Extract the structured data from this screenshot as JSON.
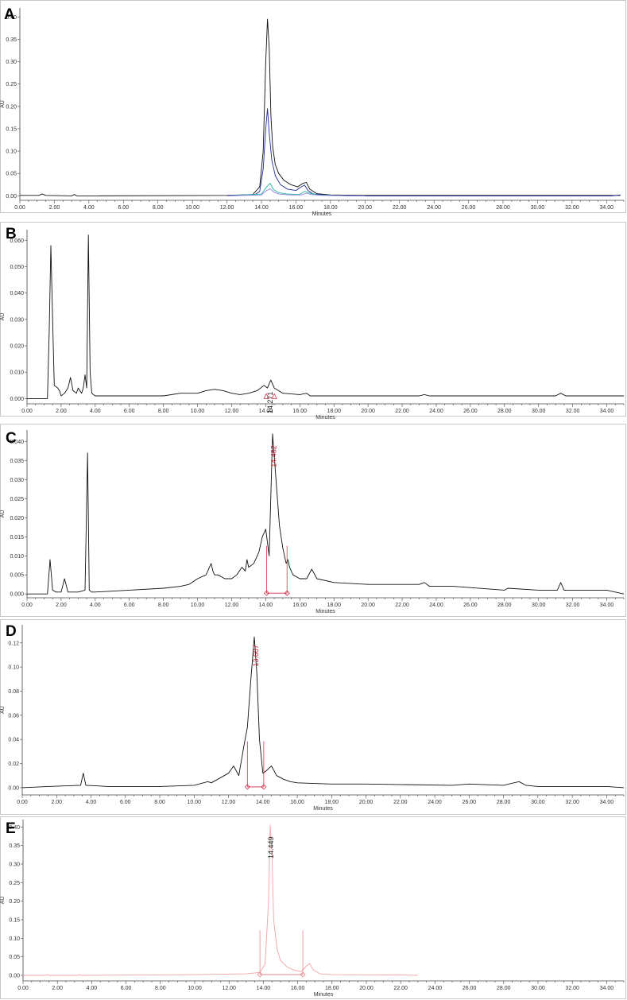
{
  "chart_data": [
    {
      "type": "line",
      "panel_label": "A",
      "xlabel": "Minutes",
      "ylabel": "AU",
      "xlim": [
        0,
        35
      ],
      "ylim": [
        -0.01,
        0.42
      ],
      "xticks": [
        0,
        2,
        4,
        6,
        8,
        10,
        12,
        14,
        16,
        18,
        20,
        22,
        24,
        26,
        28,
        30,
        32,
        34
      ],
      "xtick_labels": [
        "0.00",
        "2.00",
        "4.00",
        "6.00",
        "8.00",
        "10.00",
        "12.00",
        "14.00",
        "16.00",
        "18.00",
        "20.00",
        "22.00",
        "24.00",
        "26.00",
        "28.00",
        "30.00",
        "32.00",
        "34.00"
      ],
      "yticks": [
        0,
        0.05,
        0.1,
        0.15,
        0.2,
        0.25,
        0.3,
        0.35,
        0.4
      ],
      "ytick_labels": [
        "0.00",
        "0.05",
        "0.10",
        "0.15",
        "0.20",
        "0.25",
        "0.30",
        "0.35",
        "0.40"
      ],
      "series": [
        {
          "color": "#111111",
          "x": [
            0,
            1.1,
            1.3,
            1.5,
            3.0,
            3.15,
            3.3,
            4.5,
            12,
            13.5,
            13.9,
            14.1,
            14.25,
            14.35,
            14.45,
            14.55,
            14.65,
            14.8,
            15.0,
            15.3,
            15.7,
            16.1,
            16.4,
            16.6,
            16.8,
            17.2,
            18,
            20,
            34.8
          ],
          "y": [
            0.001,
            0.001,
            0.004,
            0.001,
            0.0,
            0.003,
            0.0,
            0.0,
            0.001,
            0.003,
            0.02,
            0.1,
            0.3,
            0.395,
            0.33,
            0.18,
            0.11,
            0.07,
            0.05,
            0.035,
            0.025,
            0.02,
            0.028,
            0.03,
            0.015,
            0.005,
            0.002,
            0.001,
            0.001
          ]
        },
        {
          "color": "#1d2a9c",
          "x": [
            12,
            13.6,
            13.9,
            14.1,
            14.25,
            14.35,
            14.45,
            14.6,
            14.8,
            15.1,
            15.5,
            16.0,
            16.3,
            16.5,
            16.7,
            17.0,
            18,
            20,
            34.3,
            34.8
          ],
          "y": [
            0.001,
            0.002,
            0.01,
            0.06,
            0.15,
            0.195,
            0.14,
            0.08,
            0.045,
            0.025,
            0.015,
            0.012,
            0.02,
            0.024,
            0.012,
            0.004,
            0.001,
            0.0,
            0.0,
            0.002
          ]
        },
        {
          "color": "#25b39a",
          "x": [
            12,
            14.0,
            14.3,
            14.5,
            14.7,
            15.0,
            15.5,
            16.2,
            16.5,
            16.8,
            17.3,
            19,
            20
          ],
          "y": [
            0.0,
            0.004,
            0.02,
            0.028,
            0.014,
            0.007,
            0.004,
            0.003,
            0.01,
            0.006,
            0.002,
            0.0,
            0.0
          ]
        },
        {
          "color": "#8f7fe6",
          "x": [
            12,
            14.0,
            14.3,
            14.5,
            14.7,
            15.0,
            15.6,
            16.3,
            16.6,
            16.9,
            17.5,
            20
          ],
          "y": [
            0.0,
            0.002,
            0.012,
            0.016,
            0.009,
            0.004,
            0.002,
            0.002,
            0.006,
            0.003,
            0.001,
            0.0
          ]
        }
      ],
      "peak_annotations": []
    },
    {
      "type": "line",
      "panel_label": "B",
      "xlabel": "Minutes",
      "ylabel": "AU",
      "xlim": [
        0,
        35
      ],
      "ylim": [
        -0.002,
        0.064
      ],
      "xticks": [
        0,
        2,
        4,
        6,
        8,
        10,
        12,
        14,
        16,
        18,
        20,
        22,
        24,
        26,
        28,
        30,
        32,
        34
      ],
      "xtick_labels": [
        "0.00",
        "2.00",
        "4.00",
        "6.00",
        "8.00",
        "10.00",
        "12.00",
        "14.00",
        "16.00",
        "18.00",
        "20.00",
        "22.00",
        "24.00",
        "26.00",
        "28.00",
        "30.00",
        "32.00",
        "34.00"
      ],
      "yticks": [
        0,
        0.01,
        0.02,
        0.03,
        0.04,
        0.05,
        0.06
      ],
      "ytick_labels": [
        "0.000",
        "0.010",
        "0.020",
        "0.030",
        "0.040",
        "0.050",
        "0.060"
      ],
      "series": [
        {
          "color": "#111111",
          "x": [
            0,
            1.2,
            1.3,
            1.4,
            1.5,
            1.6,
            1.8,
            1.9,
            2.0,
            2.2,
            2.4,
            2.55,
            2.7,
            2.9,
            3.0,
            3.1,
            3.2,
            3.3,
            3.4,
            3.5,
            3.6,
            3.7,
            3.8,
            4.0,
            5,
            6,
            7,
            8,
            9,
            10,
            10.5,
            11,
            11.5,
            12,
            12.5,
            13,
            13.5,
            13.9,
            14.1,
            14.3,
            14.5,
            15,
            16,
            16.4,
            16.6,
            17,
            20,
            23,
            23.3,
            23.6,
            25,
            28,
            31,
            31.3,
            31.6,
            32,
            34,
            35
          ],
          "y": [
            0.0,
            0.0,
            0.025,
            0.058,
            0.03,
            0.005,
            0.004,
            0.003,
            0.001,
            0.002,
            0.004,
            0.008,
            0.003,
            0.002,
            0.004,
            0.003,
            0.002,
            0.004,
            0.009,
            0.004,
            0.062,
            0.01,
            0.002,
            0.001,
            0.001,
            0.001,
            0.001,
            0.001,
            0.002,
            0.002,
            0.003,
            0.0035,
            0.003,
            0.002,
            0.0015,
            0.002,
            0.003,
            0.005,
            0.004,
            0.007,
            0.004,
            0.002,
            0.0015,
            0.002,
            0.001,
            0.001,
            0.001,
            0.001,
            0.0015,
            0.001,
            0.001,
            0.001,
            0.001,
            0.002,
            0.001,
            0.001,
            0.001,
            0.001
          ]
        }
      ],
      "peak_annotations": [
        {
          "label": "14.271",
          "x": 14.27,
          "y": 0.007,
          "color": "#222222",
          "mark_color": "#d0324a"
        }
      ]
    },
    {
      "type": "line",
      "panel_label": "C",
      "xlabel": "Minutes",
      "ylabel": "AU",
      "xlim": [
        0,
        35
      ],
      "ylim": [
        -0.001,
        0.043
      ],
      "xticks": [
        0,
        2,
        4,
        6,
        8,
        10,
        12,
        14,
        16,
        18,
        20,
        22,
        24,
        26,
        28,
        30,
        32,
        34
      ],
      "xtick_labels": [
        "0.00",
        "2.00",
        "4.00",
        "6.00",
        "8.00",
        "10.00",
        "12.00",
        "14.00",
        "16.00",
        "18.00",
        "20.00",
        "22.00",
        "24.00",
        "26.00",
        "28.00",
        "30.00",
        "32.00",
        "34.00"
      ],
      "yticks": [
        0,
        0.005,
        0.01,
        0.015,
        0.02,
        0.025,
        0.03,
        0.035,
        0.04
      ],
      "ytick_labels": [
        "0.000",
        "0.005",
        "0.010",
        "0.015",
        "0.020",
        "0.025",
        "0.030",
        "0.035",
        "0.040"
      ],
      "series": [
        {
          "color": "#111111",
          "x": [
            0,
            1.2,
            1.35,
            1.5,
            1.7,
            2.0,
            2.2,
            2.4,
            3.0,
            3.4,
            3.55,
            3.65,
            3.8,
            4.0,
            6,
            8,
            9,
            9.5,
            10,
            10.5,
            10.8,
            10.9,
            11.0,
            11.2,
            11.6,
            12,
            12.3,
            12.6,
            12.8,
            12.9,
            13.0,
            13.3,
            13.6,
            13.8,
            14.0,
            14.2,
            14.4,
            14.6,
            14.8,
            15.0,
            15.2,
            15.3,
            15.4,
            15.6,
            16,
            16.4,
            16.7,
            17,
            18,
            20,
            23,
            23.3,
            23.6,
            25,
            28,
            28.2,
            30,
            31.1,
            31.3,
            31.5,
            34,
            35
          ],
          "y": [
            0.0,
            0.0,
            0.009,
            0.001,
            0.0005,
            0.0005,
            0.004,
            0.0005,
            0.0005,
            0.001,
            0.037,
            0.001,
            0.0005,
            0.0005,
            0.001,
            0.0015,
            0.002,
            0.0025,
            0.004,
            0.005,
            0.008,
            0.006,
            0.005,
            0.005,
            0.004,
            0.004,
            0.005,
            0.007,
            0.006,
            0.009,
            0.007,
            0.008,
            0.011,
            0.015,
            0.017,
            0.01,
            0.042,
            0.03,
            0.018,
            0.012,
            0.008,
            0.009,
            0.007,
            0.005,
            0.004,
            0.004,
            0.0065,
            0.004,
            0.003,
            0.0025,
            0.0025,
            0.003,
            0.002,
            0.002,
            0.001,
            0.0015,
            0.001,
            0.001,
            0.003,
            0.001,
            0.001,
            0.0
          ]
        }
      ],
      "peak_annotations": [
        {
          "label": "14.482",
          "x": 14.48,
          "y": 0.042,
          "color": "#c4182b",
          "mark_color": "#d0324a",
          "start": 14.05,
          "end": 15.25
        }
      ]
    },
    {
      "type": "line",
      "panel_label": "D",
      "xlabel": "Minutes",
      "ylabel": "AU",
      "xlim": [
        0,
        35
      ],
      "ylim": [
        -0.006,
        0.135
      ],
      "xticks": [
        0,
        2,
        4,
        6,
        8,
        10,
        12,
        14,
        16,
        18,
        20,
        22,
        24,
        26,
        28,
        30,
        32,
        34
      ],
      "xtick_labels": [
        "0.00",
        "2.00",
        "4.00",
        "6.00",
        "8.00",
        "10.00",
        "12.00",
        "14.00",
        "16.00",
        "18.00",
        "20.00",
        "22.00",
        "24.00",
        "26.00",
        "28.00",
        "30.00",
        "32.00",
        "34.00"
      ],
      "yticks": [
        0,
        0.02,
        0.04,
        0.06,
        0.08,
        0.1,
        0.12
      ],
      "ytick_labels": [
        "0.00",
        "0.02",
        "0.04",
        "0.06",
        "0.08",
        "0.10",
        "0.12"
      ],
      "series": [
        {
          "color": "#111111",
          "x": [
            0,
            1.5,
            3.4,
            3.55,
            3.7,
            5,
            8,
            10,
            10.8,
            11.0,
            11.5,
            12.0,
            12.3,
            12.6,
            12.9,
            13.1,
            13.3,
            13.5,
            13.65,
            13.8,
            14.0,
            14.2,
            14.5,
            14.8,
            15.2,
            15.6,
            16,
            18,
            20,
            25,
            26,
            28,
            28.9,
            29.3,
            30,
            34,
            35
          ],
          "y": [
            0.0,
            0.001,
            0.002,
            0.012,
            0.002,
            0.001,
            0.001,
            0.002,
            0.005,
            0.004,
            0.008,
            0.012,
            0.018,
            0.01,
            0.035,
            0.05,
            0.09,
            0.125,
            0.095,
            0.04,
            0.012,
            0.014,
            0.018,
            0.01,
            0.007,
            0.005,
            0.004,
            0.003,
            0.003,
            0.002,
            0.003,
            0.002,
            0.005,
            0.002,
            0.001,
            0.001,
            0.0
          ]
        }
      ],
      "peak_annotations": [
        {
          "label": "13.607",
          "x": 13.6,
          "y": 0.128,
          "color": "#c4182b",
          "mark_color": "#d0324a",
          "start": 13.1,
          "end": 14.05
        }
      ]
    },
    {
      "type": "line",
      "panel_label": "E",
      "xlabel": "Minutes",
      "ylabel": "AU",
      "xlim": [
        0,
        35
      ],
      "ylim": [
        -0.015,
        0.42
      ],
      "xticks": [
        0,
        2,
        4,
        6,
        8,
        10,
        12,
        14,
        16,
        18,
        20,
        22,
        24,
        26,
        28,
        30,
        32,
        34
      ],
      "xtick_labels": [
        "0.00",
        "2.00",
        "4.00",
        "6.00",
        "8.00",
        "10.00",
        "12.00",
        "14.00",
        "16.00",
        "18.00",
        "20.00",
        "22.00",
        "24.00",
        "26.00",
        "28.00",
        "30.00",
        "32.00",
        "34.00"
      ],
      "yticks": [
        0,
        0.05,
        0.1,
        0.15,
        0.2,
        0.25,
        0.3,
        0.35,
        0.4
      ],
      "ytick_labels": [
        "0.00",
        "0.05",
        "0.10",
        "0.15",
        "0.20",
        "0.25",
        "0.30",
        "0.35",
        "0.40"
      ],
      "series": [
        {
          "color": "#f2a3a6",
          "x": [
            0,
            1.3,
            1.4,
            1.5,
            3.2,
            3.3,
            3.4,
            10,
            13,
            13.8,
            14.1,
            14.3,
            14.4,
            14.5,
            14.6,
            14.8,
            15.0,
            15.4,
            15.8,
            16.2,
            16.5,
            16.7,
            16.9,
            17.3,
            18,
            22,
            23
          ],
          "y": [
            0.0,
            0.0,
            0.002,
            0.0,
            0.0,
            0.002,
            0.0,
            0.002,
            0.004,
            0.008,
            0.03,
            0.2,
            0.405,
            0.33,
            0.15,
            0.07,
            0.04,
            0.022,
            0.014,
            0.01,
            0.025,
            0.032,
            0.015,
            0.004,
            0.002,
            0.001,
            0.0
          ]
        }
      ],
      "peak_annotations": [
        {
          "label": "14.449",
          "x": 14.45,
          "y": 0.405,
          "color": "#222222",
          "mark_color": "#e08a8f",
          "start": 13.8,
          "end": 16.3
        }
      ]
    }
  ]
}
